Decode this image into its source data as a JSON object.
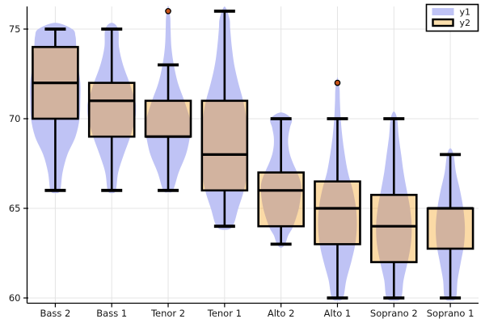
{
  "chart_data": {
    "type": "violin+boxplot",
    "title": "",
    "xlabel": "",
    "ylabel": "",
    "ylim": [
      59.7,
      76.4
    ],
    "yticks": [
      60,
      65,
      70,
      75
    ],
    "grid": "on",
    "categories": [
      "Bass 2",
      "Bass 1",
      "Tenor 2",
      "Tenor 1",
      "Alto 2",
      "Alto 1",
      "Soprano 2",
      "Soprano 1"
    ],
    "legend": {
      "position": "top-right",
      "entries": [
        {
          "label": "y1",
          "swatch": "violin"
        },
        {
          "label": "y2",
          "swatch": "boxplot"
        }
      ]
    },
    "colors": {
      "violin_fill": "#bfc3f5",
      "box_fill_rgba": "rgba(243,152,8,0.36)",
      "box_stroke": "#000000",
      "outlier_fill": "#c8531a",
      "gridline": "#e4e4e4",
      "axis": "#000000",
      "background": "#ffffff"
    },
    "series": [
      {
        "name": "y1",
        "type": "violin",
        "groups": [
          {
            "category": "Bass 2",
            "span": [
              66,
              75
            ],
            "profile": [
              [
                65.85,
                0
              ],
              [
                66,
                6
              ],
              [
                67,
                9
              ],
              [
                68,
                15
              ],
              [
                69,
                25
              ],
              [
                70,
                30
              ],
              [
                71,
                31
              ],
              [
                72,
                31
              ],
              [
                73,
                28
              ],
              [
                74,
                26
              ],
              [
                74.6,
                25
              ],
              [
                75,
                21
              ],
              [
                75.35,
                0
              ]
            ]
          },
          {
            "category": "Bass 1",
            "span": [
              66,
              75
            ],
            "profile": [
              [
                65.85,
                0
              ],
              [
                66,
                5
              ],
              [
                67,
                8
              ],
              [
                68,
                15
              ],
              [
                69,
                23
              ],
              [
                70,
                29
              ],
              [
                70.6,
                30
              ],
              [
                71,
                29
              ],
              [
                72,
                22
              ],
              [
                73,
                14
              ],
              [
                74,
                9
              ],
              [
                75,
                8
              ],
              [
                75.35,
                0
              ]
            ]
          },
          {
            "category": "Tenor 2",
            "span": [
              66,
              76
            ],
            "profile": [
              [
                65.9,
                0
              ],
              [
                66,
                6
              ],
              [
                67,
                13
              ],
              [
                68,
                22
              ],
              [
                69,
                27
              ],
              [
                69.6,
                28
              ],
              [
                70,
                27
              ],
              [
                71,
                20
              ],
              [
                72,
                12
              ],
              [
                73,
                7
              ],
              [
                74,
                4
              ],
              [
                75,
                3
              ],
              [
                75.7,
                2.5
              ],
              [
                76.3,
                0
              ]
            ]
          },
          {
            "category": "Tenor 1",
            "span": [
              64,
              76
            ],
            "profile": [
              [
                63.8,
                0
              ],
              [
                64,
                10
              ],
              [
                65,
                17
              ],
              [
                66,
                24
              ],
              [
                67,
                28
              ],
              [
                68,
                29
              ],
              [
                69,
                29
              ],
              [
                70,
                27
              ],
              [
                71,
                23
              ],
              [
                72,
                17
              ],
              [
                73,
                12
              ],
              [
                74,
                9
              ],
              [
                75,
                7
              ],
              [
                75.6,
                6
              ],
              [
                76.25,
                0
              ]
            ]
          },
          {
            "category": "Alto 2",
            "span": [
              63,
              70
            ],
            "profile": [
              [
                62.8,
                0
              ],
              [
                63,
                5
              ],
              [
                63.5,
                9
              ],
              [
                64,
                15
              ],
              [
                65,
                22
              ],
              [
                66,
                25
              ],
              [
                66.5,
                24
              ],
              [
                67,
                20
              ],
              [
                67.5,
                15
              ],
              [
                68,
                11
              ],
              [
                68.5,
                9
              ],
              [
                69,
                9
              ],
              [
                69.5,
                11
              ],
              [
                70,
                13
              ],
              [
                70.35,
                0
              ]
            ]
          },
          {
            "category": "Alto 1",
            "span": [
              60,
              72
            ],
            "profile": [
              [
                59.85,
                0
              ],
              [
                60,
                7
              ],
              [
                61,
                11
              ],
              [
                62,
                17
              ],
              [
                63,
                22
              ],
              [
                64,
                24
              ],
              [
                65,
                23
              ],
              [
                66,
                19
              ],
              [
                67,
                13
              ],
              [
                68,
                9
              ],
              [
                69,
                6
              ],
              [
                70,
                4
              ],
              [
                71,
                3
              ],
              [
                71.7,
                2.5
              ],
              [
                72.3,
                0
              ]
            ]
          },
          {
            "category": "Soprano 2",
            "span": [
              60,
              70
            ],
            "profile": [
              [
                59.85,
                0
              ],
              [
                60,
                9
              ],
              [
                61,
                12
              ],
              [
                62,
                17
              ],
              [
                63,
                21
              ],
              [
                64,
                22
              ],
              [
                65,
                20
              ],
              [
                66,
                16
              ],
              [
                67,
                12
              ],
              [
                68,
                9
              ],
              [
                69,
                6
              ],
              [
                70,
                4
              ],
              [
                70.4,
                0
              ]
            ]
          },
          {
            "category": "Soprano 1",
            "span": [
              60,
              68
            ],
            "profile": [
              [
                59.85,
                0
              ],
              [
                60,
                7
              ],
              [
                61,
                9
              ],
              [
                62,
                13
              ],
              [
                63,
                17
              ],
              [
                64,
                18
              ],
              [
                65,
                16
              ],
              [
                66,
                12
              ],
              [
                67,
                7
              ],
              [
                68,
                4
              ],
              [
                68.35,
                0
              ]
            ]
          }
        ]
      },
      {
        "name": "y2",
        "type": "boxplot",
        "groups": [
          {
            "category": "Bass 2",
            "whisker_low": 66,
            "q1": 70,
            "median": 72,
            "q3": 74,
            "whisker_high": 75,
            "outliers": []
          },
          {
            "category": "Bass 1",
            "whisker_low": 66,
            "q1": 69,
            "median": 71,
            "q3": 72,
            "whisker_high": 75,
            "outliers": []
          },
          {
            "category": "Tenor 2",
            "whisker_low": 66,
            "q1": 69,
            "median": 69,
            "q3": 71,
            "whisker_high": 73,
            "outliers": [
              76
            ]
          },
          {
            "category": "Tenor 1",
            "whisker_low": 64,
            "q1": 66,
            "median": 68,
            "q3": 71,
            "whisker_high": 76,
            "outliers": []
          },
          {
            "category": "Alto 2",
            "whisker_low": 63,
            "q1": 64,
            "median": 66,
            "q3": 67,
            "whisker_high": 70,
            "outliers": []
          },
          {
            "category": "Alto 1",
            "whisker_low": 60,
            "q1": 63,
            "median": 65,
            "q3": 66.5,
            "whisker_high": 70,
            "outliers": [
              72
            ]
          },
          {
            "category": "Soprano 2",
            "whisker_low": 60,
            "q1": 62,
            "median": 64,
            "q3": 65.75,
            "whisker_high": 70,
            "outliers": []
          },
          {
            "category": "Soprano 1",
            "whisker_low": 60,
            "q1": 62.75,
            "median": 65,
            "q3": 65,
            "whisker_high": 68,
            "outliers": []
          }
        ]
      }
    ]
  }
}
